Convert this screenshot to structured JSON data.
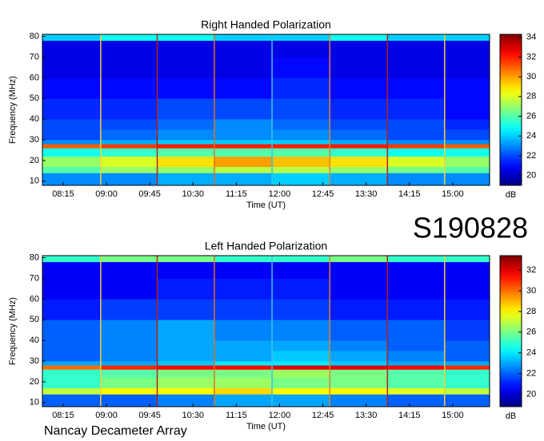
{
  "chart_data": [
    {
      "type": "heatmap",
      "title": "Right Handed Polarization",
      "xlabel": "Time (UT)",
      "ylabel": "Frequency (MHz)",
      "colorbar_label": "dB",
      "xlim": [
        7.89,
        15.64
      ],
      "ylim": [
        8,
        81
      ],
      "xticks": [
        {
          "value": 8.25,
          "label": "08:15"
        },
        {
          "value": 9,
          "label": "09:00"
        },
        {
          "value": 9.75,
          "label": "09:45"
        },
        {
          "value": 10.5,
          "label": "10:30"
        },
        {
          "value": 11.25,
          "label": "11:15"
        },
        {
          "value": 12,
          "label": "12:00"
        },
        {
          "value": 12.75,
          "label": "12:45"
        },
        {
          "value": 13.5,
          "label": "13:30"
        },
        {
          "value": 14.25,
          "label": "14:15"
        },
        {
          "value": 15,
          "label": "15:00"
        }
      ],
      "yticks": [
        10,
        20,
        30,
        40,
        50,
        60,
        70,
        80
      ],
      "clim": [
        19,
        34.3
      ],
      "cticks": [
        20,
        22,
        24,
        26,
        28,
        30,
        32,
        34
      ],
      "colormap": "jet",
      "xbins": [
        7.89,
        8.9,
        9.88,
        10.87,
        11.87,
        12.87,
        13.87,
        14.86,
        15.64
      ],
      "ybins": [
        8,
        14,
        17,
        22,
        26,
        28,
        30,
        35,
        40,
        50,
        60,
        70,
        78,
        81
      ],
      "values": [
        [
          23,
          23,
          23.5,
          23.5,
          24,
          23.5,
          23,
          23
        ],
        [
          26,
          27,
          27,
          27.5,
          27.5,
          27,
          26.5,
          26
        ],
        [
          27,
          28,
          29,
          30,
          29.5,
          29,
          28,
          27
        ],
        [
          25,
          25.5,
          26,
          26,
          26,
          25.5,
          25,
          25
        ],
        [
          31,
          31.5,
          32,
          32,
          32,
          32,
          31.5,
          31
        ],
        [
          23,
          23.5,
          24,
          24,
          24,
          23.5,
          23,
          23
        ],
        [
          22,
          22.5,
          23,
          23,
          23,
          22.5,
          22,
          22
        ],
        [
          22,
          22,
          22.5,
          23,
          22.5,
          22,
          22,
          21.5
        ],
        [
          21.5,
          21.5,
          22,
          22,
          22,
          21.5,
          21.5,
          21
        ],
        [
          21,
          21,
          21,
          21,
          21.5,
          21,
          21,
          21
        ],
        [
          20.5,
          20.5,
          20.5,
          20.5,
          21,
          20.5,
          20.5,
          20.5
        ],
        [
          20.5,
          20.5,
          20.5,
          20.5,
          20.5,
          20.5,
          20.5,
          20.5
        ],
        [
          24,
          25,
          25,
          24,
          24,
          25,
          24,
          24
        ]
      ],
      "vlines": [
        {
          "x": 8.9,
          "color": "#f0d040"
        },
        {
          "x": 9.88,
          "color": "#b02020"
        },
        {
          "x": 10.87,
          "color": "#e07020"
        },
        {
          "x": 11.87,
          "color": "#40c0e0"
        },
        {
          "x": 12.87,
          "color": "#e08030"
        },
        {
          "x": 13.87,
          "color": "#b02020"
        },
        {
          "x": 14.86,
          "color": "#f0d040"
        }
      ]
    },
    {
      "type": "heatmap",
      "title": "Left Handed Polarization",
      "xlabel": "Time (UT)",
      "ylabel": "Frequency (MHz)",
      "colorbar_label": "dB",
      "xlim": [
        7.89,
        15.64
      ],
      "ylim": [
        8,
        81
      ],
      "xticks": [
        {
          "value": 8.25,
          "label": "08:15"
        },
        {
          "value": 9,
          "label": "09:00"
        },
        {
          "value": 9.75,
          "label": "09:45"
        },
        {
          "value": 10.5,
          "label": "10:30"
        },
        {
          "value": 11.25,
          "label": "11:15"
        },
        {
          "value": 12,
          "label": "12:00"
        },
        {
          "value": 12.75,
          "label": "12:45"
        },
        {
          "value": 13.5,
          "label": "13:30"
        },
        {
          "value": 14.25,
          "label": "14:15"
        },
        {
          "value": 15,
          "label": "15:00"
        }
      ],
      "yticks": [
        10,
        20,
        30,
        40,
        50,
        60,
        70,
        80
      ],
      "clim": [
        18.8,
        33.4
      ],
      "cticks": [
        20,
        22,
        24,
        26,
        28,
        30,
        32
      ],
      "colormap": "jet",
      "xbins": [
        7.89,
        8.9,
        9.88,
        10.87,
        11.87,
        12.87,
        13.87,
        14.86,
        15.64
      ],
      "ybins": [
        8,
        14,
        17,
        22,
        26,
        28,
        30,
        35,
        40,
        50,
        60,
        70,
        78,
        81
      ],
      "values": [
        [
          22,
          22,
          22.5,
          23,
          23,
          22.5,
          22,
          22
        ],
        [
          27,
          28,
          28,
          28.5,
          28,
          28,
          27.5,
          27
        ],
        [
          25,
          26,
          26.5,
          26.5,
          26,
          26,
          25.5,
          25
        ],
        [
          25,
          25.5,
          26,
          26,
          26.5,
          26,
          25.5,
          25
        ],
        [
          30,
          31,
          31.5,
          31.5,
          32,
          32,
          31.5,
          31
        ],
        [
          23,
          23,
          23.5,
          24,
          24,
          23.5,
          23,
          23
        ],
        [
          22,
          22.5,
          23,
          23,
          23.5,
          23,
          22.5,
          22
        ],
        [
          22,
          22.5,
          23,
          23,
          23,
          22.5,
          22,
          22
        ],
        [
          22,
          22.5,
          23,
          22.5,
          22.5,
          22,
          22,
          21.5
        ],
        [
          21,
          21.5,
          21.5,
          21.5,
          21.5,
          21,
          21,
          21
        ],
        [
          20.5,
          20.5,
          21,
          21,
          21,
          20.5,
          20.5,
          20.5
        ],
        [
          20.5,
          20.5,
          20.5,
          20.5,
          20.5,
          20.5,
          20.5,
          20.5
        ],
        [
          25,
          26,
          26,
          25,
          25,
          26,
          25,
          25
        ]
      ],
      "vlines": [
        {
          "x": 8.9,
          "color": "#f0d040"
        },
        {
          "x": 9.88,
          "color": "#b02020"
        },
        {
          "x": 10.87,
          "color": "#e07020"
        },
        {
          "x": 11.87,
          "color": "#40c0e0"
        },
        {
          "x": 12.87,
          "color": "#e08030"
        },
        {
          "x": 13.87,
          "color": "#b02020"
        },
        {
          "x": 14.86,
          "color": "#f0d040"
        }
      ]
    }
  ],
  "header": {
    "event_id": "S190828"
  },
  "footer": {
    "instrument": "Nancay Decameter Array"
  }
}
